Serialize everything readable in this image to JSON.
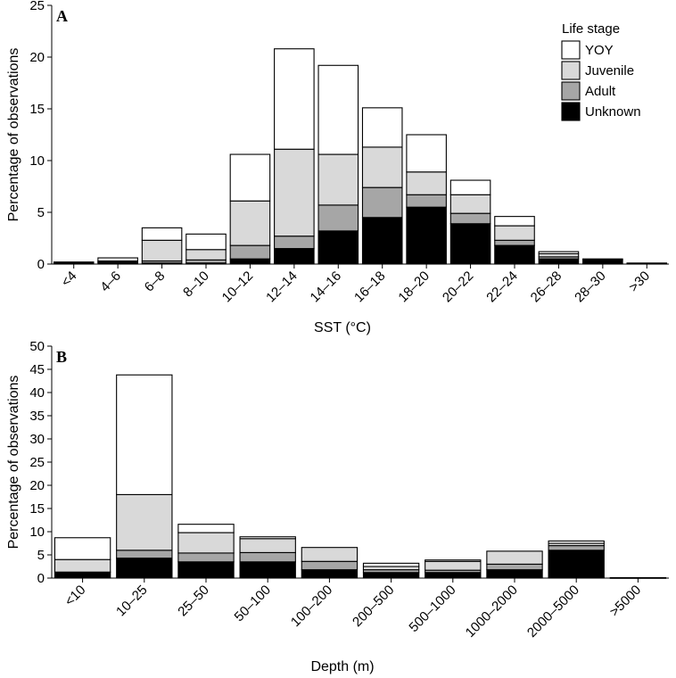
{
  "chart_data": [
    {
      "type": "bar",
      "stacked": true,
      "panel_label": "A",
      "xlabel": "SST (°C)",
      "ylabel": "Percentage of observations",
      "ylim": [
        0,
        25
      ],
      "yticks": [
        0,
        5,
        10,
        15,
        20,
        25
      ],
      "categories": [
        "<4",
        "4–6",
        "6–8",
        "8–10",
        "10–12",
        "12–14",
        "14–16",
        "16–18",
        "18–20",
        "20–22",
        "22–24",
        "26–28",
        "28–30",
        ">30"
      ],
      "series": [
        {
          "name": "Unknown",
          "color": "#000000",
          "values": [
            0.2,
            0.15,
            0.1,
            0.1,
            0.5,
            1.5,
            3.2,
            4.5,
            5.5,
            3.9,
            1.8,
            0.5,
            0.4,
            0.1
          ]
        },
        {
          "name": "Adult",
          "color": "#a6a6a6",
          "values": [
            0.0,
            0.05,
            0.2,
            0.3,
            1.3,
            1.2,
            2.5,
            2.9,
            1.2,
            1.0,
            0.5,
            0.2,
            0.1,
            0.0
          ]
        },
        {
          "name": "Juvenile",
          "color": "#d9d9d9",
          "values": [
            0.0,
            0.1,
            2.0,
            1.0,
            4.3,
            8.4,
            4.9,
            3.9,
            2.2,
            1.8,
            1.4,
            0.3,
            0.0,
            0.0
          ]
        },
        {
          "name": "YOY",
          "color": "#ffffff",
          "values": [
            0.0,
            0.3,
            1.2,
            1.5,
            4.5,
            9.7,
            8.6,
            3.8,
            3.6,
            1.4,
            0.9,
            0.2,
            0.0,
            0.0
          ]
        }
      ],
      "legend": {
        "title": "Life stage",
        "entries": [
          "YOY",
          "Juvenile",
          "Adult",
          "Unknown"
        ],
        "placement": "top-right"
      },
      "grid": false
    },
    {
      "type": "bar",
      "stacked": true,
      "panel_label": "B",
      "xlabel": "Depth (m)",
      "ylabel": "Percentage of observations",
      "ylim": [
        0,
        50
      ],
      "yticks": [
        0,
        5,
        10,
        15,
        20,
        25,
        30,
        35,
        40,
        45,
        50
      ],
      "categories": [
        "<10",
        "10–25",
        "25–50",
        "50–100",
        "100–200",
        "200–500",
        "500–1000",
        "1000–2000",
        "2000–5000",
        ">5000"
      ],
      "series": [
        {
          "name": "Unknown",
          "color": "#000000",
          "values": [
            1.3,
            4.3,
            3.5,
            3.5,
            1.8,
            1.2,
            1.2,
            1.8,
            6.0,
            0.1
          ]
        },
        {
          "name": "Adult",
          "color": "#a6a6a6",
          "values": [
            0.0,
            1.7,
            1.9,
            2.0,
            1.8,
            0.6,
            0.5,
            1.2,
            1.0,
            0.0
          ]
        },
        {
          "name": "Juvenile",
          "color": "#d9d9d9",
          "values": [
            2.7,
            12.0,
            4.4,
            3.0,
            3.0,
            0.7,
            1.9,
            2.8,
            0.5,
            0.0
          ]
        },
        {
          "name": "YOY",
          "color": "#ffffff",
          "values": [
            4.7,
            25.8,
            1.8,
            0.4,
            0.0,
            0.7,
            0.3,
            0.0,
            0.5,
            0.0
          ]
        }
      ],
      "grid": false
    }
  ]
}
